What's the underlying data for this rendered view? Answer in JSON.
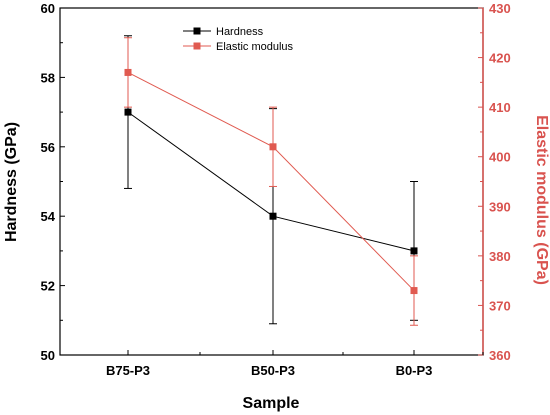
{
  "chart_data": {
    "type": "line",
    "categories": [
      "B75-P3",
      "B50-P3",
      "B0-P3"
    ],
    "xlabel": "Sample",
    "ylabel_left": "Hardness (GPa)",
    "ylabel_right": "Elastic modulus (GPa)",
    "ylim_left": [
      50,
      60
    ],
    "ylim_right": [
      360,
      430
    ],
    "yticks_left": [
      "50",
      "52",
      "54",
      "56",
      "58",
      "60"
    ],
    "yticks_right": [
      "360",
      "370",
      "380",
      "390",
      "400",
      "410",
      "420",
      "430"
    ],
    "legend_position": "top-center",
    "series": [
      {
        "name": "Hardness",
        "axis": "left",
        "color": "#000000",
        "marker": "square",
        "values": [
          57,
          54,
          53
        ],
        "error": [
          2.2,
          3.1,
          2.0
        ]
      },
      {
        "name": "Elastic modulus",
        "axis": "right",
        "color": "#e05a50",
        "marker": "square",
        "values": [
          417,
          402,
          373
        ],
        "error": [
          7,
          8,
          7
        ]
      }
    ]
  },
  "colors": {
    "left_axis": "#000000",
    "right_axis": "#d9534f",
    "hardness_line": "#000000",
    "modulus_line": "#e05a50"
  }
}
